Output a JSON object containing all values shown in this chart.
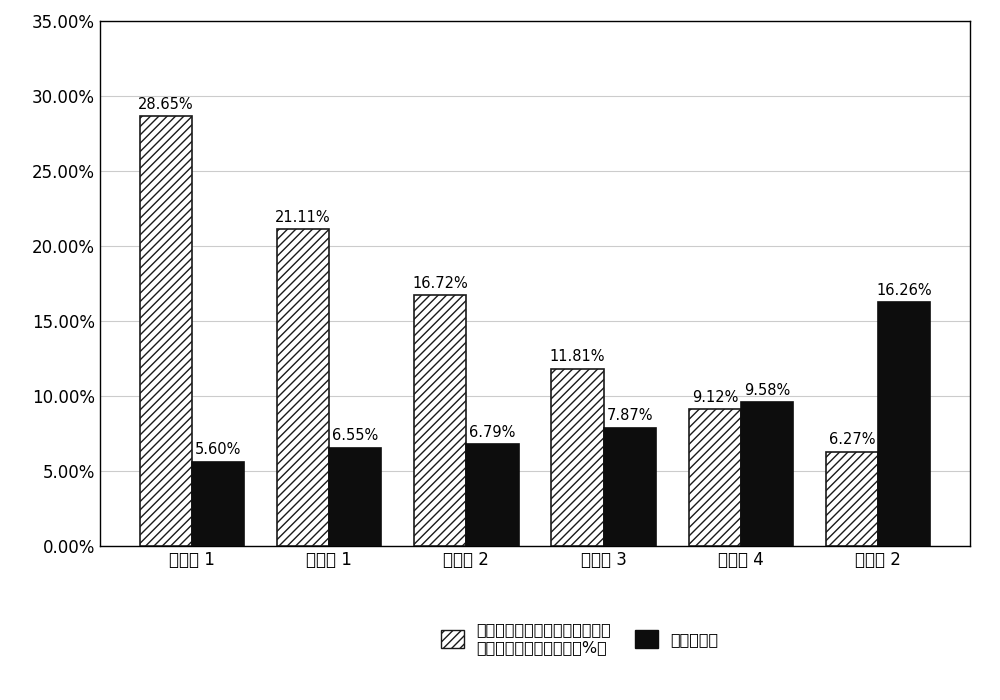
{
  "categories": [
    "比较例 1",
    "实施例 1",
    "实施例 2",
    "实施例 3",
    "实施例 4",
    "比较例 2"
  ],
  "series1_values": [
    0.2865,
    0.2111,
    0.1672,
    0.1181,
    0.0912,
    0.0627
  ],
  "series2_values": [
    0.056,
    0.0655,
    0.0679,
    0.0787,
    0.0958,
    0.1626
  ],
  "series1_labels": [
    "28.65%",
    "21.11%",
    "16.72%",
    "11.81%",
    "9.12%",
    "6.27%"
  ],
  "series2_labels": [
    "5.60%",
    "6.55%",
    "6.79%",
    "7.87%",
    "9.58%",
    "16.26%"
  ],
  "legend1": "肆溶包衣层中滑石的含量（相对\n于层的总固体含量，重量%）",
  "legend2": "双粒的比例",
  "ylim": [
    0,
    0.35
  ],
  "yticks": [
    0.0,
    0.05,
    0.1,
    0.15,
    0.2,
    0.25,
    0.3,
    0.35
  ],
  "ytick_labels": [
    "0.00%",
    "5.00%",
    "10.00%",
    "15.00%",
    "20.00%",
    "25.00%",
    "30.00%",
    "35.00%"
  ],
  "bar_width": 0.38,
  "hatch_pattern": "////",
  "series1_color": "white",
  "series1_edgecolor": "#1a1a1a",
  "series2_color": "#0d0d0d",
  "series2_edgecolor": "#0d0d0d",
  "background_color": "white",
  "label_fontsize": 10.5,
  "tick_fontsize": 12,
  "legend_fontsize": 11.5
}
